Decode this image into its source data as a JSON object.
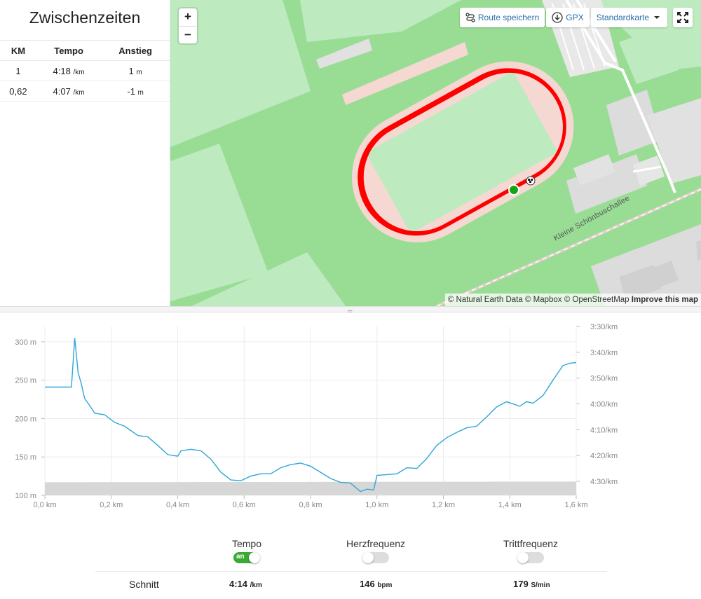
{
  "splits": {
    "title": "Zwischenzeiten",
    "headers": [
      "KM",
      "Tempo",
      "Anstieg"
    ],
    "rows": [
      {
        "km": "1",
        "pace": "4:18",
        "pace_unit": "/km",
        "climb": "1",
        "climb_unit": "m"
      },
      {
        "km": "0,62",
        "pace": "4:07",
        "pace_unit": "/km",
        "climb": "-1",
        "climb_unit": "m"
      }
    ]
  },
  "map": {
    "zoom_in": "+",
    "zoom_out": "−",
    "save_route": "Route speichern",
    "gpx": "GPX",
    "map_type": "Standardkarte",
    "street_label": "Kleine Schönbuschallee",
    "attribution": "© Natural Earth Data © Mapbox © OpenStreetMap",
    "attribution_link": "Improve this map",
    "route_color": "#ff0000",
    "start_color": "#14a514"
  },
  "chart_data": {
    "type": "line",
    "x_unit": "km",
    "x_ticks": [
      "0,0 km",
      "0,2 km",
      "0,4 km",
      "0,6 km",
      "0,8 km",
      "1,0 km",
      "1,2 km",
      "1,4 km",
      "1,6 km"
    ],
    "y_left_ticks": [
      "300 m",
      "250 m",
      "200 m",
      "150 m",
      "100 m"
    ],
    "y_left_values": [
      300,
      250,
      200,
      150,
      100
    ],
    "y_right_ticks": [
      "3:30/km",
      "3:40/km",
      "3:50/km",
      "4:00/km",
      "4:10/km",
      "4:20/km",
      "4:30/km"
    ],
    "xlim": [
      0,
      1.6
    ],
    "ylim": [
      100,
      320
    ],
    "line_color": "#2fa6d6",
    "area_color": "#d7d7d7",
    "pace_series": {
      "x": [
        0.0,
        0.08,
        0.09,
        0.1,
        0.11,
        0.12,
        0.13,
        0.15,
        0.18,
        0.21,
        0.24,
        0.28,
        0.31,
        0.34,
        0.37,
        0.4,
        0.41,
        0.44,
        0.47,
        0.5,
        0.53,
        0.56,
        0.59,
        0.62,
        0.65,
        0.68,
        0.71,
        0.74,
        0.77,
        0.8,
        0.83,
        0.86,
        0.89,
        0.92,
        0.95,
        0.97,
        0.99,
        1.0,
        1.03,
        1.06,
        1.09,
        1.12,
        1.15,
        1.18,
        1.21,
        1.24,
        1.27,
        1.3,
        1.33,
        1.36,
        1.39,
        1.41,
        1.43,
        1.45,
        1.47,
        1.5,
        1.53,
        1.56,
        1.58,
        1.6
      ],
      "y": [
        241,
        241,
        305,
        260,
        245,
        226,
        220,
        207,
        205,
        195,
        190,
        178,
        176,
        165,
        153,
        151,
        158,
        160,
        158,
        147,
        130,
        120,
        119,
        125,
        128,
        128,
        136,
        140,
        142,
        138,
        130,
        122,
        117,
        116,
        105,
        108,
        107,
        126,
        127,
        128,
        136,
        135,
        148,
        165,
        175,
        182,
        188,
        190,
        202,
        215,
        222,
        219,
        216,
        222,
        220,
        230,
        250,
        269,
        272,
        273
      ]
    },
    "elevation_band": {
      "x": [
        0.0,
        1.6
      ],
      "y": [
        117,
        117
      ]
    }
  },
  "toggles": [
    {
      "label": "Tempo",
      "on": true,
      "on_text": "an"
    },
    {
      "label": "Herzfrequenz",
      "on": false
    },
    {
      "label": "Trittfrequenz",
      "on": false
    }
  ],
  "summary": {
    "label": "Schnitt",
    "pace": "4:14",
    "pace_unit": "/km",
    "hr": "146",
    "hr_unit": "bpm",
    "cadence": "179",
    "cadence_unit": "S/min"
  }
}
